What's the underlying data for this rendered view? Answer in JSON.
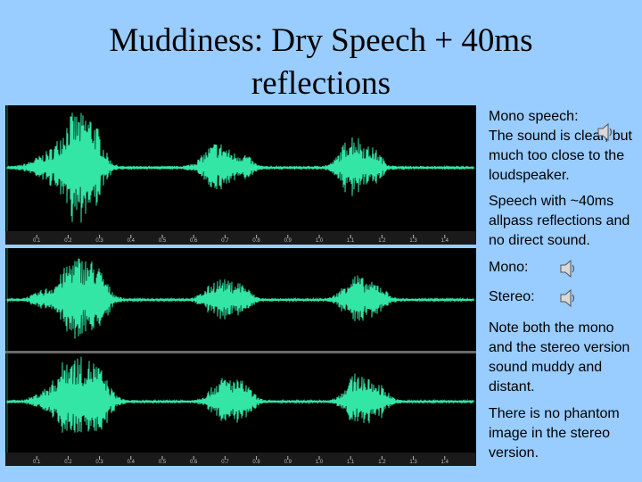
{
  "slide": {
    "title_line1": "Muddiness:  Dry Speech + 40ms",
    "title_line2": "reflections",
    "background_color": "#99ccff",
    "waveform_color": "#33e6a6"
  },
  "top_panel": {
    "ticks": [
      "0.1",
      "0.2",
      "0.3",
      "0.4",
      "0.5",
      "0.6",
      "0.7",
      "0.8",
      "0.9",
      "1.0",
      "1.1",
      "1.2",
      "1.3",
      "1.4"
    ]
  },
  "bottom_panel": {
    "ticks": [
      "0.1",
      "0.2",
      "0.3",
      "0.4",
      "0.5",
      "0.6",
      "0.7",
      "0.8",
      "0.9",
      "1.0",
      "1.1",
      "1.2",
      "1.3",
      "1.4"
    ]
  },
  "notes": {
    "mono_speech_heading": "Mono speech:",
    "mono_speech_text": "The sound is clear, but much too close to the loudspeaker.",
    "reflections_text": "Speech with ~40ms allpass reflections and no direct sound.",
    "mono_label": "Mono:",
    "stereo_label": "Stereo:",
    "note_text": "Note both the mono and the stereo version sound muddy and distant.",
    "phantom_text": "There is no phantom image in the stereo version."
  },
  "icons": {
    "audio_1": "speaker-icon",
    "audio_mono": "speaker-icon",
    "audio_stereo": "speaker-icon"
  }
}
